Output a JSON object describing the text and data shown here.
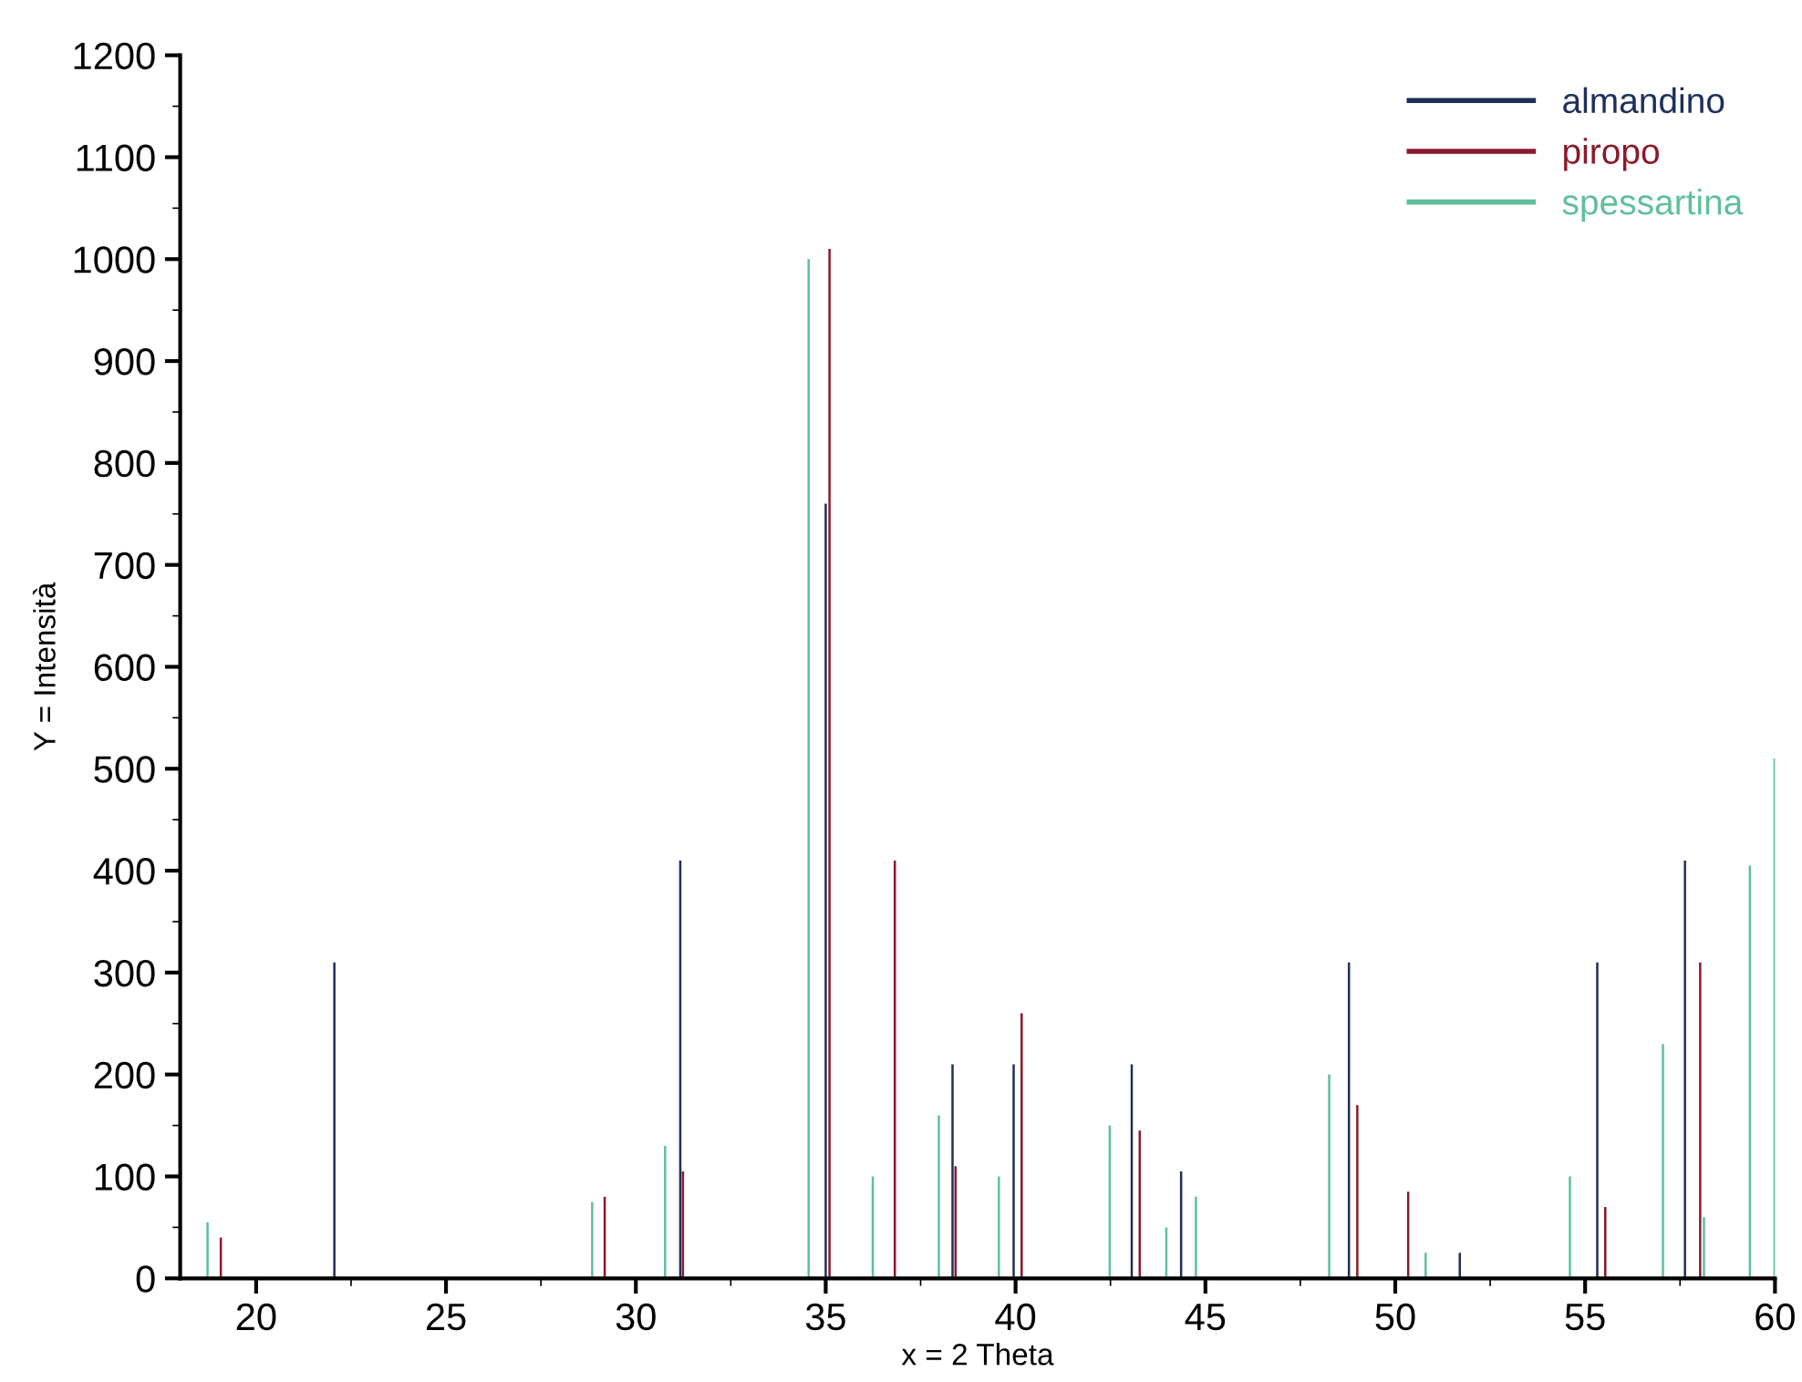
{
  "chart_data": {
    "type": "bar",
    "xlabel": "x = 2 Theta",
    "ylabel": "Y = Intensità",
    "xlim": [
      18,
      60
    ],
    "xticks": [
      20,
      25,
      30,
      35,
      40,
      45,
      50,
      55,
      60
    ],
    "ylim": [
      0,
      1200
    ],
    "yticks": [
      0,
      100,
      200,
      300,
      400,
      500,
      600,
      700,
      800,
      900,
      1000,
      1100,
      1200
    ],
    "grid": false,
    "legend": "top right",
    "series": [
      {
        "name": "almandino",
        "color": "#1f2f5a",
        "x": [
          22.06,
          31.17,
          35.0,
          38.34,
          39.95,
          43.06,
          44.36,
          48.78,
          51.7,
          55.32,
          57.63
        ],
        "values": [
          310,
          410,
          760,
          210,
          210,
          210,
          105,
          310,
          25,
          310,
          410
        ]
      },
      {
        "name": "piropo",
        "color": "#8b1a2b",
        "x": [
          19.07,
          29.18,
          31.24,
          35.1,
          36.82,
          38.42,
          40.16,
          43.27,
          49.0,
          50.34,
          55.53,
          58.03
        ],
        "values": [
          40,
          80,
          105,
          1010,
          410,
          110,
          260,
          145,
          170,
          85,
          70,
          310
        ]
      },
      {
        "name": "spessartina",
        "color": "#5fbf9a",
        "x": [
          18.72,
          28.85,
          30.77,
          34.55,
          36.24,
          37.98,
          39.56,
          42.48,
          43.97,
          44.75,
          48.26,
          50.8,
          54.6,
          57.05,
          58.13,
          59.34,
          59.99
        ],
        "values": [
          55,
          75,
          130,
          1000,
          100,
          160,
          100,
          150,
          50,
          80,
          200,
          25,
          100,
          230,
          60,
          405,
          510
        ]
      }
    ]
  }
}
